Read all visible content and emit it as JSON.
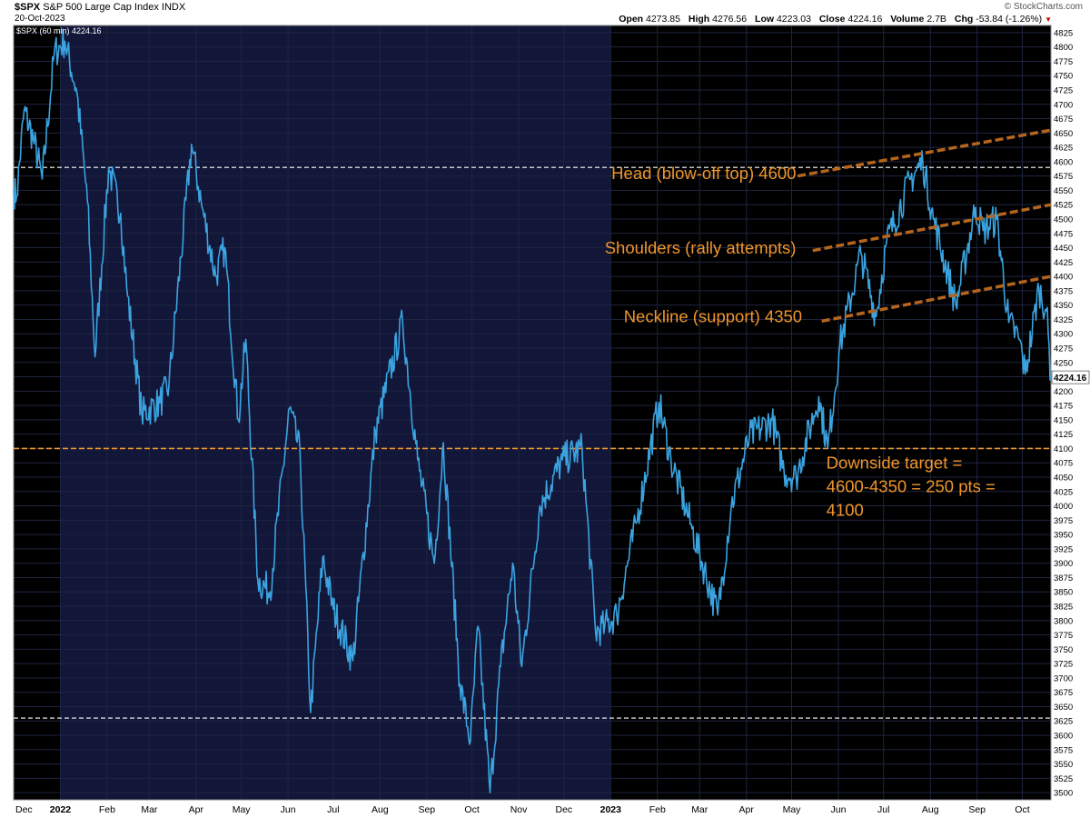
{
  "header": {
    "symbol": "$SPX",
    "name": "S&P 500 Large Cap Index",
    "exchange": "INDX",
    "date": "20-Oct-2023",
    "brand": "© StockCharts.com",
    "open_label": "Open",
    "open": "4273.85",
    "high_label": "High",
    "high": "4276.56",
    "low_label": "Low",
    "low": "4223.03",
    "close_label": "Close",
    "close": "4224.16",
    "volume_label": "Volume",
    "volume": "2.7B",
    "chg_label": "Chg",
    "chg": "-53.84 (-1.26%)"
  },
  "legend": "$SPX (60 min) 4224.16",
  "colors": {
    "background": "#000000",
    "shade_2022": "#121638",
    "price": "#3aa3e0",
    "annotation": "#f0962c",
    "trendline": "#b5651d",
    "grid": "#1e2540",
    "axis_text": "#000000",
    "last_price_bg": "#ffffff"
  },
  "chart_data": {
    "type": "line",
    "title": "",
    "xlabel": "",
    "ylabel": "",
    "ylim": [
      3487.5,
      4837.5
    ],
    "y_ticks": [
      3500,
      3525,
      3550,
      3575,
      3600,
      3625,
      3650,
      3675,
      3700,
      3725,
      3750,
      3775,
      3800,
      3825,
      3850,
      3875,
      3900,
      3925,
      3950,
      3975,
      4000,
      4025,
      4050,
      4075,
      4100,
      4125,
      4150,
      4175,
      4200,
      4225,
      4250,
      4275,
      4300,
      4325,
      4350,
      4375,
      4400,
      4425,
      4450,
      4475,
      4500,
      4525,
      4550,
      4575,
      4600,
      4625,
      4650,
      4675,
      4700,
      4725,
      4750,
      4775,
      4800,
      4825
    ],
    "x_range": [
      "2021-12-01",
      "2023-10-20"
    ],
    "x_ticks": [
      {
        "date": "2021-12-01",
        "label": "Dec",
        "bold": false
      },
      {
        "date": "2022-01-01",
        "label": "2022",
        "bold": true
      },
      {
        "date": "2022-02-01",
        "label": "Feb",
        "bold": false
      },
      {
        "date": "2022-03-01",
        "label": "Mar",
        "bold": false
      },
      {
        "date": "2022-04-01",
        "label": "Apr",
        "bold": false
      },
      {
        "date": "2022-05-01",
        "label": "May",
        "bold": false
      },
      {
        "date": "2022-06-01",
        "label": "Jun",
        "bold": false
      },
      {
        "date": "2022-07-01",
        "label": "Jul",
        "bold": false
      },
      {
        "date": "2022-08-01",
        "label": "Aug",
        "bold": false
      },
      {
        "date": "2022-09-01",
        "label": "Sep",
        "bold": false
      },
      {
        "date": "2022-10-01",
        "label": "Oct",
        "bold": false
      },
      {
        "date": "2022-11-01",
        "label": "Nov",
        "bold": false
      },
      {
        "date": "2022-12-01",
        "label": "Dec",
        "bold": false
      },
      {
        "date": "2023-01-01",
        "label": "2023",
        "bold": true
      },
      {
        "date": "2023-02-01",
        "label": "Feb",
        "bold": false
      },
      {
        "date": "2023-03-01",
        "label": "Mar",
        "bold": false
      },
      {
        "date": "2023-04-01",
        "label": "Apr",
        "bold": false
      },
      {
        "date": "2023-05-01",
        "label": "May",
        "bold": false
      },
      {
        "date": "2023-06-01",
        "label": "Jun",
        "bold": false
      },
      {
        "date": "2023-07-01",
        "label": "Jul",
        "bold": false
      },
      {
        "date": "2023-08-01",
        "label": "Aug",
        "bold": false
      },
      {
        "date": "2023-09-01",
        "label": "Sep",
        "bold": false
      },
      {
        "date": "2023-10-01",
        "label": "Oct",
        "bold": false
      }
    ],
    "shaded_period": [
      "2022-01-01",
      "2023-01-01"
    ],
    "series": [
      {
        "values": [
          {
            "x": "2021-12-01",
            "y": 4550
          },
          {
            "x": "2021-12-03",
            "y": 4540
          },
          {
            "x": "2021-12-08",
            "y": 4690
          },
          {
            "x": "2021-12-14",
            "y": 4640
          },
          {
            "x": "2021-12-20",
            "y": 4570
          },
          {
            "x": "2021-12-28",
            "y": 4790
          },
          {
            "x": "2022-01-04",
            "y": 4810
          },
          {
            "x": "2022-01-12",
            "y": 4720
          },
          {
            "x": "2022-01-19",
            "y": 4530
          },
          {
            "x": "2022-01-24",
            "y": 4260
          },
          {
            "x": "2022-02-02",
            "y": 4590
          },
          {
            "x": "2022-02-10",
            "y": 4510
          },
          {
            "x": "2022-02-14",
            "y": 4380
          },
          {
            "x": "2022-02-24",
            "y": 4160
          },
          {
            "x": "2022-03-08",
            "y": 4180
          },
          {
            "x": "2022-03-14",
            "y": 4210
          },
          {
            "x": "2022-03-29",
            "y": 4630
          },
          {
            "x": "2022-04-05",
            "y": 4520
          },
          {
            "x": "2022-04-14",
            "y": 4400
          },
          {
            "x": "2022-04-20",
            "y": 4450
          },
          {
            "x": "2022-04-29",
            "y": 4150
          },
          {
            "x": "2022-05-04",
            "y": 4290
          },
          {
            "x": "2022-05-12",
            "y": 3870
          },
          {
            "x": "2022-05-20",
            "y": 3850
          },
          {
            "x": "2022-06-02",
            "y": 4170
          },
          {
            "x": "2022-06-09",
            "y": 4090
          },
          {
            "x": "2022-06-16",
            "y": 3640
          },
          {
            "x": "2022-06-24",
            "y": 3910
          },
          {
            "x": "2022-07-01",
            "y": 3820
          },
          {
            "x": "2022-07-14",
            "y": 3730
          },
          {
            "x": "2022-07-29",
            "y": 4130
          },
          {
            "x": "2022-08-16",
            "y": 4320
          },
          {
            "x": "2022-08-26",
            "y": 4080
          },
          {
            "x": "2022-09-06",
            "y": 3900
          },
          {
            "x": "2022-09-12",
            "y": 4110
          },
          {
            "x": "2022-09-23",
            "y": 3690
          },
          {
            "x": "2022-09-30",
            "y": 3590
          },
          {
            "x": "2022-10-05",
            "y": 3790
          },
          {
            "x": "2022-10-13",
            "y": 3500
          },
          {
            "x": "2022-10-20",
            "y": 3720
          },
          {
            "x": "2022-10-28",
            "y": 3900
          },
          {
            "x": "2022-11-03",
            "y": 3720
          },
          {
            "x": "2022-11-15",
            "y": 4000
          },
          {
            "x": "2022-11-30",
            "y": 4080
          },
          {
            "x": "2022-12-13",
            "y": 4100
          },
          {
            "x": "2022-12-22",
            "y": 3780
          },
          {
            "x": "2022-12-28",
            "y": 3790
          },
          {
            "x": "2023-01-05",
            "y": 3810
          },
          {
            "x": "2023-01-18",
            "y": 3970
          },
          {
            "x": "2023-02-02",
            "y": 4180
          },
          {
            "x": "2023-02-10",
            "y": 4080
          },
          {
            "x": "2023-02-24",
            "y": 3960
          },
          {
            "x": "2023-03-13",
            "y": 3810
          },
          {
            "x": "2023-03-22",
            "y": 4000
          },
          {
            "x": "2023-04-03",
            "y": 4120
          },
          {
            "x": "2023-04-18",
            "y": 4150
          },
          {
            "x": "2023-04-26",
            "y": 4060
          },
          {
            "x": "2023-05-04",
            "y": 4050
          },
          {
            "x": "2023-05-19",
            "y": 4190
          },
          {
            "x": "2023-05-25",
            "y": 4100
          },
          {
            "x": "2023-06-02",
            "y": 4280
          },
          {
            "x": "2023-06-16",
            "y": 4440
          },
          {
            "x": "2023-06-26",
            "y": 4330
          },
          {
            "x": "2023-07-03",
            "y": 4460
          },
          {
            "x": "2023-07-19",
            "y": 4570
          },
          {
            "x": "2023-07-27",
            "y": 4600
          },
          {
            "x": "2023-08-03",
            "y": 4500
          },
          {
            "x": "2023-08-18",
            "y": 4350
          },
          {
            "x": "2023-08-31",
            "y": 4520
          },
          {
            "x": "2023-09-05",
            "y": 4480
          },
          {
            "x": "2023-09-14",
            "y": 4500
          },
          {
            "x": "2023-09-22",
            "y": 4320
          },
          {
            "x": "2023-09-29",
            "y": 4290
          },
          {
            "x": "2023-10-03",
            "y": 4230
          },
          {
            "x": "2023-10-12",
            "y": 4380
          },
          {
            "x": "2023-10-17",
            "y": 4340
          },
          {
            "x": "2023-10-20",
            "y": 4224.16
          }
        ]
      }
    ],
    "reference_lines": [
      {
        "y": 4590,
        "style": "white-dashed"
      },
      {
        "y": 4100,
        "style": "orange-dashed"
      },
      {
        "y": 3630,
        "style": "white-dashed"
      }
    ],
    "trendlines": [
      {
        "from": {
          "x": "2023-05-05",
          "y": 4575
        },
        "to": {
          "x": "2023-10-20",
          "y": 4655
        }
      },
      {
        "from": {
          "x": "2023-05-15",
          "y": 4445
        },
        "to": {
          "x": "2023-10-20",
          "y": 4525
        }
      },
      {
        "from": {
          "x": "2023-05-21",
          "y": 4322
        },
        "to": {
          "x": "2023-10-20",
          "y": 4400
        }
      }
    ],
    "annotations": [
      {
        "text": "Head (blow-off top) 4600",
        "anchor": {
          "x": "2023-05-04",
          "y": 4570
        }
      },
      {
        "text": "Shoulders (rally attempts)",
        "anchor": {
          "x": "2023-05-04",
          "y": 4440
        }
      },
      {
        "text": "Neckline (support) 4350",
        "anchor": {
          "x": "2023-05-08",
          "y": 4320
        }
      },
      {
        "lines": [
          "Downside target =",
          "4600-4350 = 250 pts =",
          "4100"
        ],
        "anchor": {
          "x": "2023-05-24",
          "y": 4065
        }
      }
    ],
    "last_price_label": "4224.16"
  }
}
